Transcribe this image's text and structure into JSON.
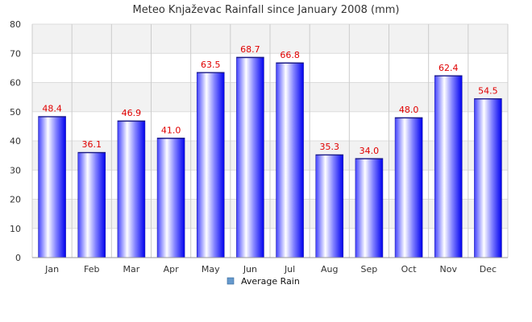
{
  "chart_data": {
    "type": "bar",
    "title": "Meteo Knjaževac Rainfall since January 2008 (mm)",
    "categories": [
      "Jan",
      "Feb",
      "Mar",
      "Apr",
      "May",
      "Jun",
      "Jul",
      "Aug",
      "Sep",
      "Oct",
      "Nov",
      "Dec"
    ],
    "series": [
      {
        "name": "Average Rain",
        "values": [
          48.4,
          36.1,
          46.9,
          41.0,
          63.5,
          68.7,
          66.8,
          35.3,
          34.0,
          48.0,
          62.4,
          54.5
        ],
        "data_labels": [
          "48.4",
          "36.1",
          "46.9",
          "41.0",
          "63.5",
          "68.7",
          "66.8",
          "35.3",
          "34.0",
          "48.0",
          "62.4",
          "54.5"
        ]
      }
    ],
    "ylim": [
      0,
      80
    ],
    "yticks": [
      0,
      10,
      20,
      30,
      40,
      50,
      60,
      70,
      80
    ],
    "grid": true,
    "legend_position": "bottom-center",
    "colors": {
      "bar_light": "#ffffff",
      "bar_dark": "#0000ee",
      "bar_edge": "#2222aa",
      "label": "#e00000",
      "band": "#f2f2f2",
      "legend_marker": "#6699cc"
    }
  }
}
